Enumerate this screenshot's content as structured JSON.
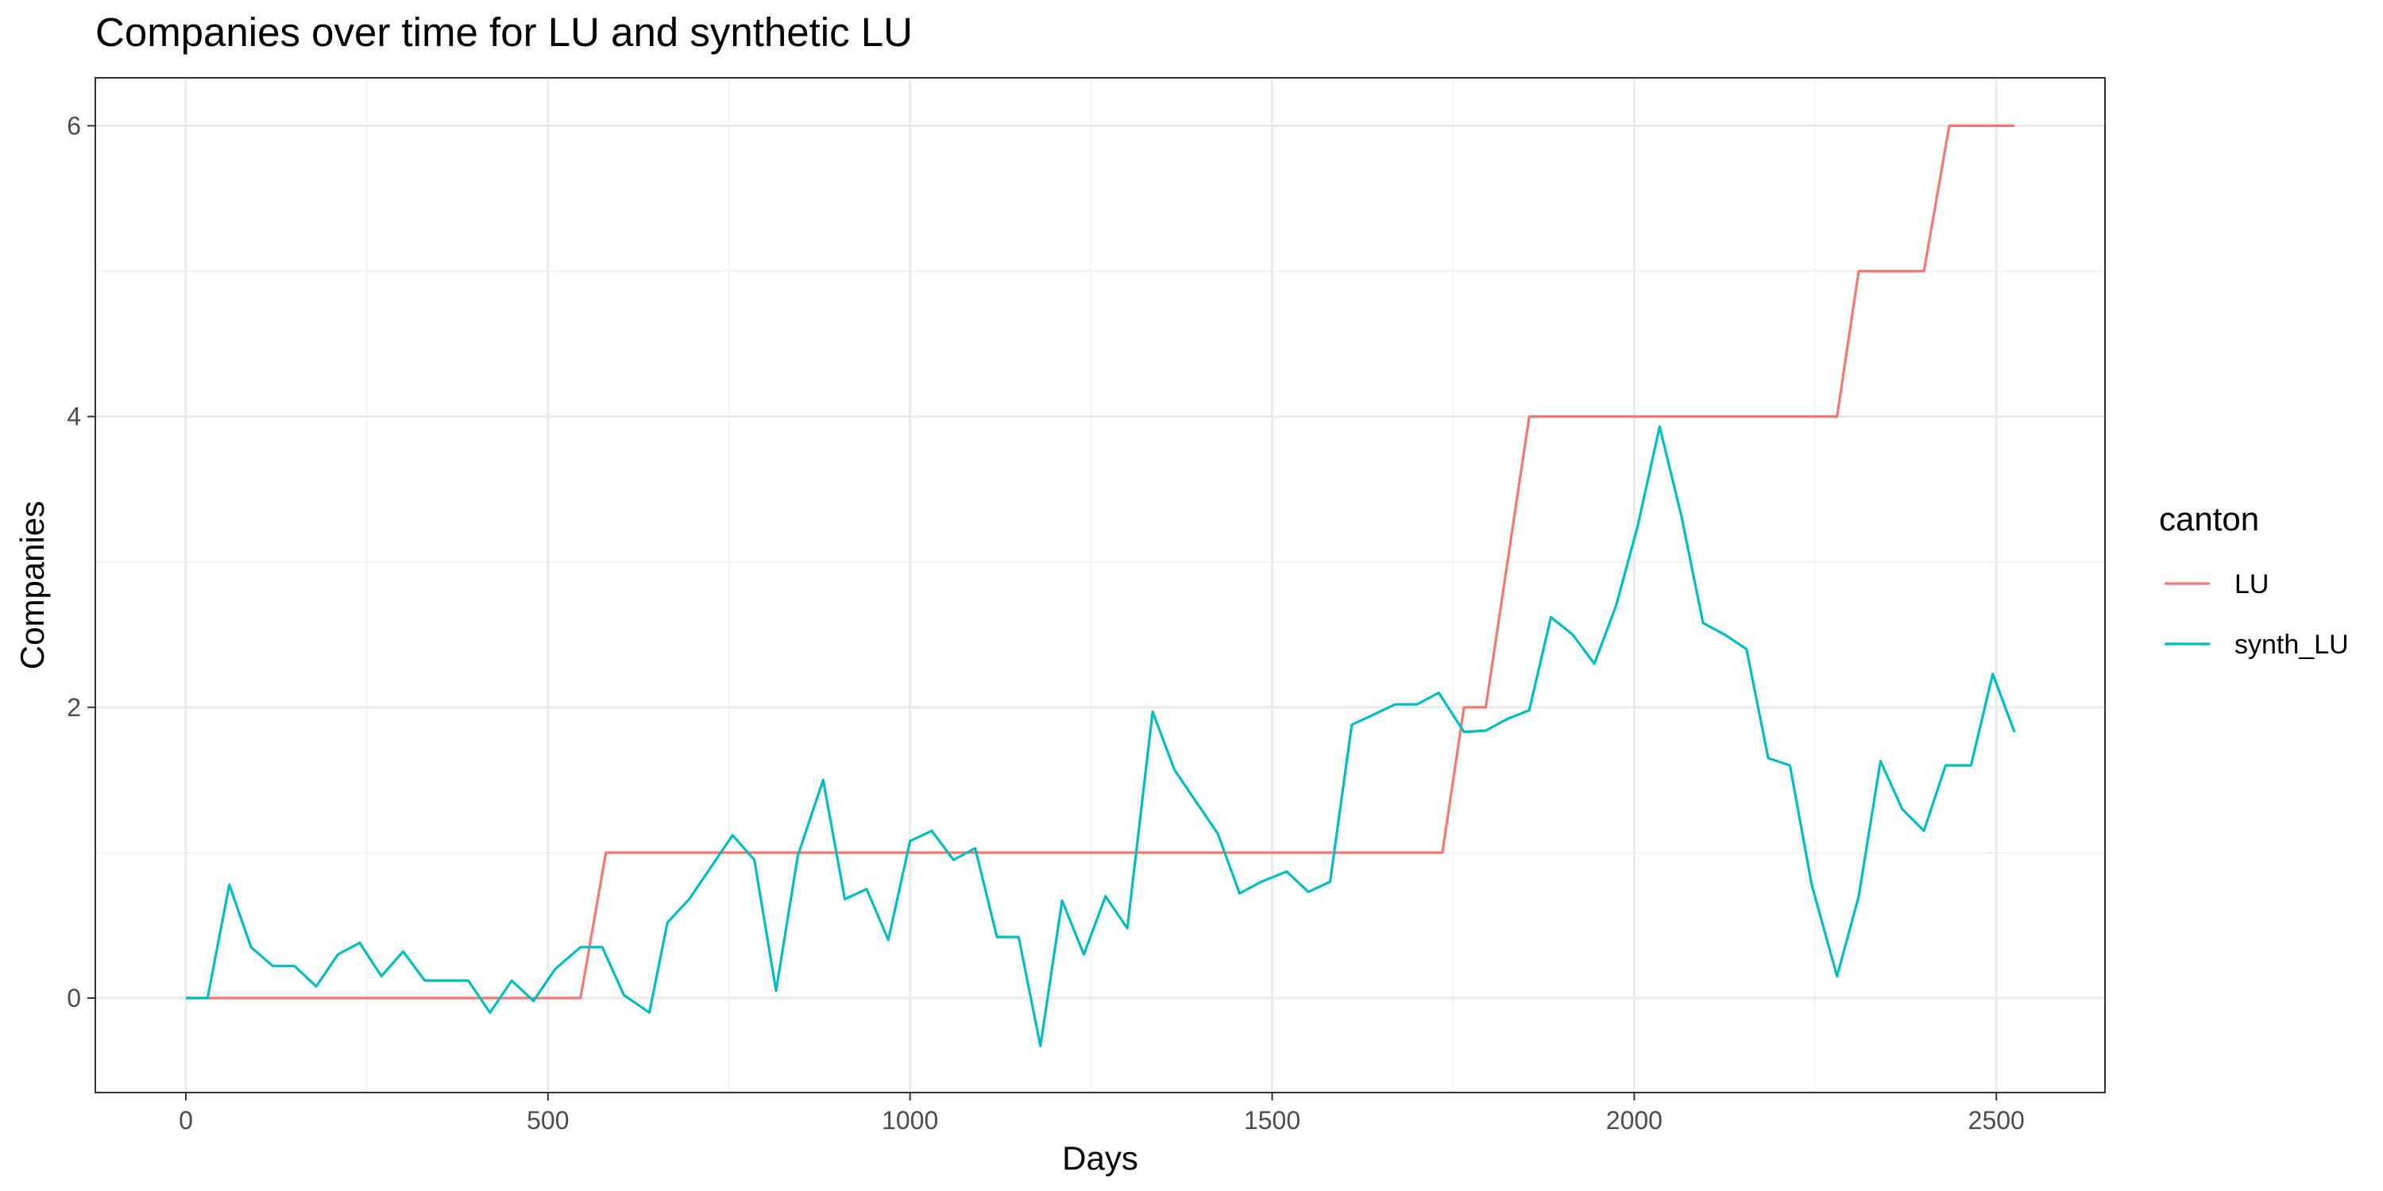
{
  "chart_data": {
    "type": "line",
    "title": "Companies over time for LU and synthetic LU",
    "xlabel": "Days",
    "ylabel": "Companies",
    "xlim": [
      -125,
      2650
    ],
    "ylim": [
      -0.65,
      6.33
    ],
    "x_ticks": [
      0,
      500,
      1000,
      1500,
      2000,
      2500
    ],
    "x_tick_labels": [
      "0",
      "500",
      "1000",
      "1500",
      "2000",
      "2500"
    ],
    "y_ticks": [
      0,
      2,
      4,
      6
    ],
    "y_tick_labels": [
      "0",
      "2",
      "4",
      "6"
    ],
    "x_minor_ticks": [
      250,
      750,
      1250,
      1750,
      2250
    ],
    "y_minor_ticks": [
      1,
      3,
      5
    ],
    "grid": true,
    "legend": {
      "title": "canton",
      "position": "right"
    },
    "series": [
      {
        "name": "LU",
        "color": "#F8766D",
        "x": [
          0,
          30,
          60,
          90,
          120,
          150,
          180,
          210,
          240,
          270,
          300,
          330,
          360,
          390,
          420,
          450,
          480,
          510,
          545,
          580,
          610,
          640,
          670,
          700,
          730,
          760,
          790,
          820,
          850,
          880,
          910,
          940,
          970,
          1000,
          1030,
          1060,
          1090,
          1120,
          1150,
          1180,
          1210,
          1240,
          1270,
          1300,
          1330,
          1360,
          1390,
          1420,
          1450,
          1480,
          1510,
          1540,
          1570,
          1600,
          1630,
          1660,
          1690,
          1735,
          1765,
          1795,
          1855,
          1890,
          1920,
          1950,
          1980,
          2010,
          2040,
          2070,
          2100,
          2130,
          2160,
          2190,
          2220,
          2250,
          2280,
          2310,
          2340,
          2370,
          2400,
          2435,
          2465,
          2495,
          2525
        ],
        "y": [
          0,
          0,
          0,
          0,
          0,
          0,
          0,
          0,
          0,
          0,
          0,
          0,
          0,
          0,
          0,
          0,
          0,
          0,
          0,
          1,
          1,
          1,
          1,
          1,
          1,
          1,
          1,
          1,
          1,
          1,
          1,
          1,
          1,
          1,
          1,
          1,
          1,
          1,
          1,
          1,
          1,
          1,
          1,
          1,
          1,
          1,
          1,
          1,
          1,
          1,
          1,
          1,
          1,
          1,
          1,
          1,
          1,
          1,
          2,
          2,
          4,
          4,
          4,
          4,
          4,
          4,
          4,
          4,
          4,
          4,
          4,
          4,
          4,
          4,
          4,
          5,
          5,
          5,
          5,
          6,
          6,
          6,
          6
        ]
      },
      {
        "name": "synth_LU",
        "color": "#00BFC4",
        "x": [
          0,
          30,
          60,
          90,
          120,
          150,
          180,
          210,
          240,
          270,
          300,
          330,
          360,
          390,
          420,
          450,
          480,
          510,
          545,
          575,
          605,
          640,
          665,
          695,
          725,
          755,
          785,
          815,
          845,
          880,
          910,
          940,
          970,
          1000,
          1030,
          1060,
          1090,
          1120,
          1150,
          1180,
          1210,
          1240,
          1270,
          1300,
          1335,
          1365,
          1395,
          1425,
          1455,
          1485,
          1520,
          1550,
          1580,
          1610,
          1640,
          1670,
          1700,
          1730,
          1765,
          1795,
          1825,
          1855,
          1885,
          1915,
          1945,
          1975,
          2005,
          2035,
          2065,
          2095,
          2125,
          2155,
          2185,
          2215,
          2245,
          2280,
          2310,
          2340,
          2370,
          2400,
          2430,
          2465,
          2495,
          2525
        ],
        "y": [
          0,
          0,
          0.78,
          0.35,
          0.22,
          0.22,
          0.08,
          0.3,
          0.38,
          0.15,
          0.32,
          0.12,
          0.12,
          0.12,
          -0.1,
          0.12,
          -0.02,
          0.2,
          0.35,
          0.35,
          0.02,
          -0.1,
          0.52,
          0.68,
          0.9,
          1.12,
          0.95,
          0.05,
          0.98,
          1.5,
          0.68,
          0.75,
          0.4,
          1.08,
          1.15,
          0.95,
          1.03,
          0.42,
          0.42,
          -0.33,
          0.67,
          0.3,
          0.7,
          0.48,
          1.97,
          1.57,
          1.35,
          1.13,
          0.72,
          0.8,
          0.87,
          0.73,
          0.8,
          1.88,
          1.95,
          2.02,
          2.02,
          2.1,
          1.83,
          1.84,
          1.92,
          1.98,
          2.62,
          2.5,
          2.3,
          2.7,
          3.25,
          3.93,
          3.32,
          2.58,
          2.5,
          2.4,
          1.65,
          1.6,
          0.78,
          0.15,
          0.7,
          1.63,
          1.3,
          1.15,
          1.6,
          1.6,
          2.23,
          1.83
        ]
      }
    ]
  }
}
